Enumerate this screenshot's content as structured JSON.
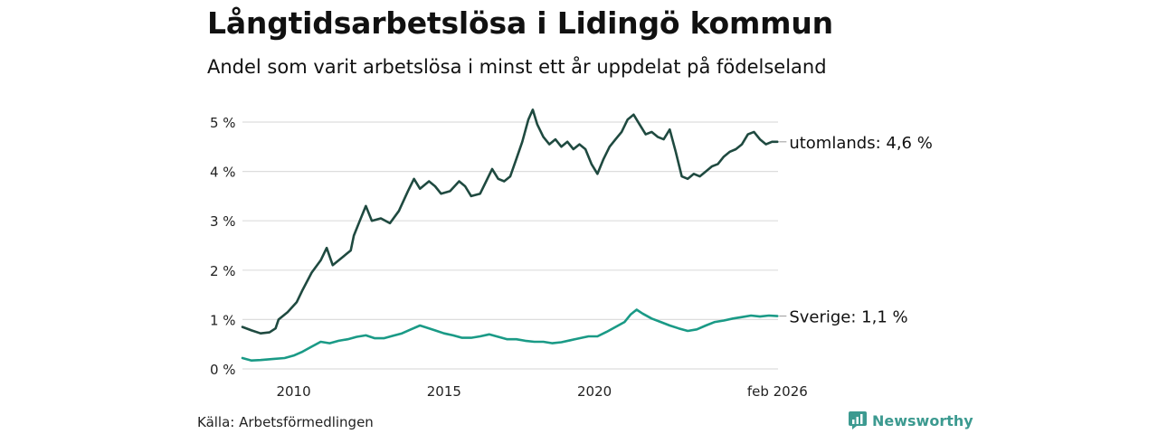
{
  "header": {
    "title": "Långtidsarbetslösa i Lidingö kommun",
    "subtitle": "Andel som varit arbetslösa i minst ett år uppdelat på födelseland"
  },
  "footer": {
    "source": "Källa: Arbetsförmedlingen",
    "brand": "Newsworthy"
  },
  "colors": {
    "utomlands": "#1f4a40",
    "sverige": "#1a9a86",
    "grid": "#dddddd",
    "brand": "#3c9a90"
  },
  "chart_data": {
    "type": "line",
    "title": "Långtidsarbetslösa i Lidingö kommun",
    "subtitle": "Andel som varit arbetslösa i minst ett år uppdelat på födelseland",
    "xlabel": "",
    "ylabel": "",
    "ylim": [
      0,
      5.5
    ],
    "xlim": [
      2008.3,
      2026.1
    ],
    "y_ticks": [
      {
        "value": 0,
        "label": "0 %"
      },
      {
        "value": 1,
        "label": "1 %"
      },
      {
        "value": 2,
        "label": "2 %"
      },
      {
        "value": 3,
        "label": "3 %"
      },
      {
        "value": 4,
        "label": "4 %"
      },
      {
        "value": 5,
        "label": "5 %"
      }
    ],
    "x_ticks": [
      {
        "value": 2010,
        "label": "2010"
      },
      {
        "value": 2015,
        "label": "2015"
      },
      {
        "value": 2020,
        "label": "2020"
      },
      {
        "value": 2026.08,
        "label": "feb 2026"
      }
    ],
    "grid": true,
    "series": [
      {
        "name": "utomlands",
        "end_label": "utomlands: 4,6 %",
        "points": [
          [
            2008.3,
            0.85
          ],
          [
            2008.6,
            0.78
          ],
          [
            2008.9,
            0.72
          ],
          [
            2009.2,
            0.74
          ],
          [
            2009.4,
            0.82
          ],
          [
            2009.5,
            1.0
          ],
          [
            2009.8,
            1.15
          ],
          [
            2010.1,
            1.35
          ],
          [
            2010.3,
            1.6
          ],
          [
            2010.6,
            1.95
          ],
          [
            2010.9,
            2.2
          ],
          [
            2011.1,
            2.45
          ],
          [
            2011.3,
            2.1
          ],
          [
            2011.6,
            2.25
          ],
          [
            2011.9,
            2.4
          ],
          [
            2012.0,
            2.7
          ],
          [
            2012.2,
            3.0
          ],
          [
            2012.4,
            3.3
          ],
          [
            2012.6,
            3.0
          ],
          [
            2012.9,
            3.05
          ],
          [
            2013.2,
            2.95
          ],
          [
            2013.5,
            3.2
          ],
          [
            2013.8,
            3.6
          ],
          [
            2014.0,
            3.85
          ],
          [
            2014.2,
            3.65
          ],
          [
            2014.5,
            3.8
          ],
          [
            2014.7,
            3.7
          ],
          [
            2014.9,
            3.55
          ],
          [
            2015.2,
            3.6
          ],
          [
            2015.5,
            3.8
          ],
          [
            2015.7,
            3.7
          ],
          [
            2015.9,
            3.5
          ],
          [
            2016.2,
            3.55
          ],
          [
            2016.4,
            3.8
          ],
          [
            2016.6,
            4.05
          ],
          [
            2016.8,
            3.85
          ],
          [
            2017.0,
            3.8
          ],
          [
            2017.2,
            3.9
          ],
          [
            2017.4,
            4.25
          ],
          [
            2017.6,
            4.6
          ],
          [
            2017.8,
            5.05
          ],
          [
            2017.95,
            5.25
          ],
          [
            2018.1,
            4.95
          ],
          [
            2018.3,
            4.7
          ],
          [
            2018.5,
            4.55
          ],
          [
            2018.7,
            4.65
          ],
          [
            2018.9,
            4.5
          ],
          [
            2019.1,
            4.6
          ],
          [
            2019.3,
            4.45
          ],
          [
            2019.5,
            4.55
          ],
          [
            2019.7,
            4.45
          ],
          [
            2019.9,
            4.15
          ],
          [
            2020.1,
            3.95
          ],
          [
            2020.3,
            4.25
          ],
          [
            2020.5,
            4.5
          ],
          [
            2020.7,
            4.65
          ],
          [
            2020.9,
            4.8
          ],
          [
            2021.1,
            5.05
          ],
          [
            2021.3,
            5.15
          ],
          [
            2021.5,
            4.95
          ],
          [
            2021.7,
            4.75
          ],
          [
            2021.9,
            4.8
          ],
          [
            2022.1,
            4.7
          ],
          [
            2022.3,
            4.65
          ],
          [
            2022.5,
            4.85
          ],
          [
            2022.7,
            4.4
          ],
          [
            2022.9,
            3.9
          ],
          [
            2023.1,
            3.85
          ],
          [
            2023.3,
            3.95
          ],
          [
            2023.5,
            3.9
          ],
          [
            2023.7,
            4.0
          ],
          [
            2023.9,
            4.1
          ],
          [
            2024.1,
            4.15
          ],
          [
            2024.3,
            4.3
          ],
          [
            2024.5,
            4.4
          ],
          [
            2024.7,
            4.45
          ],
          [
            2024.9,
            4.55
          ],
          [
            2025.1,
            4.75
          ],
          [
            2025.3,
            4.8
          ],
          [
            2025.5,
            4.65
          ],
          [
            2025.7,
            4.55
          ],
          [
            2025.9,
            4.6
          ],
          [
            2026.08,
            4.6
          ]
        ]
      },
      {
        "name": "Sverige",
        "end_label": "Sverige: 1,1 %",
        "points": [
          [
            2008.3,
            0.22
          ],
          [
            2008.6,
            0.17
          ],
          [
            2008.9,
            0.18
          ],
          [
            2009.3,
            0.2
          ],
          [
            2009.7,
            0.22
          ],
          [
            2010.0,
            0.27
          ],
          [
            2010.3,
            0.35
          ],
          [
            2010.6,
            0.45
          ],
          [
            2010.9,
            0.55
          ],
          [
            2011.2,
            0.52
          ],
          [
            2011.5,
            0.57
          ],
          [
            2011.8,
            0.6
          ],
          [
            2012.1,
            0.65
          ],
          [
            2012.4,
            0.68
          ],
          [
            2012.7,
            0.62
          ],
          [
            2013.0,
            0.62
          ],
          [
            2013.3,
            0.67
          ],
          [
            2013.6,
            0.72
          ],
          [
            2013.9,
            0.8
          ],
          [
            2014.2,
            0.88
          ],
          [
            2014.4,
            0.84
          ],
          [
            2014.7,
            0.78
          ],
          [
            2015.0,
            0.72
          ],
          [
            2015.3,
            0.68
          ],
          [
            2015.6,
            0.63
          ],
          [
            2015.9,
            0.63
          ],
          [
            2016.2,
            0.66
          ],
          [
            2016.5,
            0.7
          ],
          [
            2016.8,
            0.65
          ],
          [
            2017.1,
            0.6
          ],
          [
            2017.4,
            0.6
          ],
          [
            2017.7,
            0.57
          ],
          [
            2018.0,
            0.55
          ],
          [
            2018.3,
            0.55
          ],
          [
            2018.6,
            0.52
          ],
          [
            2018.9,
            0.54
          ],
          [
            2019.2,
            0.58
          ],
          [
            2019.5,
            0.62
          ],
          [
            2019.8,
            0.66
          ],
          [
            2020.1,
            0.66
          ],
          [
            2020.4,
            0.75
          ],
          [
            2020.7,
            0.85
          ],
          [
            2021.0,
            0.95
          ],
          [
            2021.2,
            1.1
          ],
          [
            2021.4,
            1.2
          ],
          [
            2021.6,
            1.12
          ],
          [
            2021.9,
            1.02
          ],
          [
            2022.2,
            0.95
          ],
          [
            2022.5,
            0.88
          ],
          [
            2022.8,
            0.82
          ],
          [
            2023.1,
            0.77
          ],
          [
            2023.4,
            0.8
          ],
          [
            2023.7,
            0.88
          ],
          [
            2024.0,
            0.95
          ],
          [
            2024.3,
            0.98
          ],
          [
            2024.6,
            1.02
          ],
          [
            2024.9,
            1.05
          ],
          [
            2025.2,
            1.08
          ],
          [
            2025.5,
            1.06
          ],
          [
            2025.8,
            1.08
          ],
          [
            2026.08,
            1.07
          ]
        ]
      }
    ]
  }
}
